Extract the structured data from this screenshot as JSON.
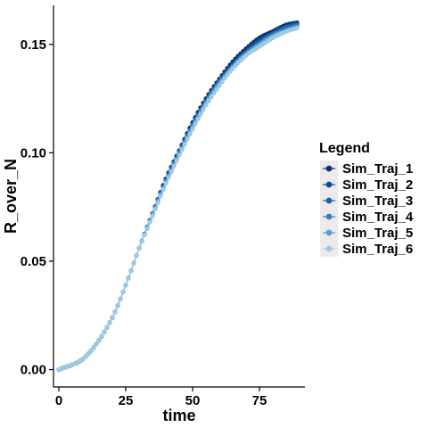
{
  "chart_data": {
    "type": "line",
    "xlabel": "time",
    "ylabel": "R_over_N",
    "xlim": [
      -2,
      92
    ],
    "ylim": [
      -0.008,
      0.168
    ],
    "xticks": [
      0,
      25,
      50,
      75
    ],
    "xtick_labels": [
      "0",
      "25",
      "50",
      "75"
    ],
    "yticks": [
      0.0,
      0.05,
      0.1,
      0.15
    ],
    "ytick_labels": [
      "0.00",
      "0.05",
      "0.10",
      "0.15"
    ],
    "grid": false,
    "legend": {
      "title": "Legend",
      "placement": "right",
      "entries": [
        "Sim_Traj_1",
        "Sim_Traj_2",
        "Sim_Traj_3",
        "Sim_Traj_4",
        "Sim_Traj_5",
        "Sim_Traj_6"
      ]
    },
    "markers": "points-with-lines",
    "x": [
      0,
      10,
      20,
      25,
      30,
      35,
      40,
      45,
      50,
      55,
      60,
      65,
      70,
      75,
      80,
      85,
      89
    ],
    "series": [
      {
        "name": "Sim_Traj_1",
        "color": "#08306b",
        "values": [
          0.0,
          0.006,
          0.024,
          0.039,
          0.056,
          0.072,
          0.088,
          0.101,
          0.114,
          0.125,
          0.134,
          0.142,
          0.148,
          0.153,
          0.156,
          0.159,
          0.16
        ]
      },
      {
        "name": "Sim_Traj_2",
        "color": "#0b4a94",
        "values": [
          0.0,
          0.006,
          0.024,
          0.039,
          0.056,
          0.072,
          0.088,
          0.101,
          0.113,
          0.124,
          0.133,
          0.141,
          0.147,
          0.152,
          0.155,
          0.158,
          0.1595
        ]
      },
      {
        "name": "Sim_Traj_3",
        "color": "#1c62aa",
        "values": [
          0.0,
          0.006,
          0.024,
          0.039,
          0.056,
          0.072,
          0.087,
          0.1,
          0.113,
          0.124,
          0.133,
          0.14,
          0.146,
          0.151,
          0.155,
          0.158,
          0.159
        ]
      },
      {
        "name": "Sim_Traj_4",
        "color": "#3a7fc0",
        "values": [
          0.0,
          0.006,
          0.024,
          0.039,
          0.056,
          0.072,
          0.087,
          0.1,
          0.112,
          0.123,
          0.132,
          0.14,
          0.146,
          0.15,
          0.154,
          0.157,
          0.1585
        ]
      },
      {
        "name": "Sim_Traj_5",
        "color": "#5b9bd2",
        "values": [
          0.0,
          0.006,
          0.024,
          0.039,
          0.056,
          0.071,
          0.086,
          0.099,
          0.112,
          0.123,
          0.132,
          0.139,
          0.145,
          0.15,
          0.154,
          0.156,
          0.158
        ]
      },
      {
        "name": "Sim_Traj_6",
        "color": "#9ecae1",
        "values": [
          0.0,
          0.006,
          0.024,
          0.039,
          0.056,
          0.071,
          0.086,
          0.099,
          0.111,
          0.122,
          0.131,
          0.139,
          0.145,
          0.149,
          0.153,
          0.156,
          0.1575
        ]
      }
    ]
  }
}
